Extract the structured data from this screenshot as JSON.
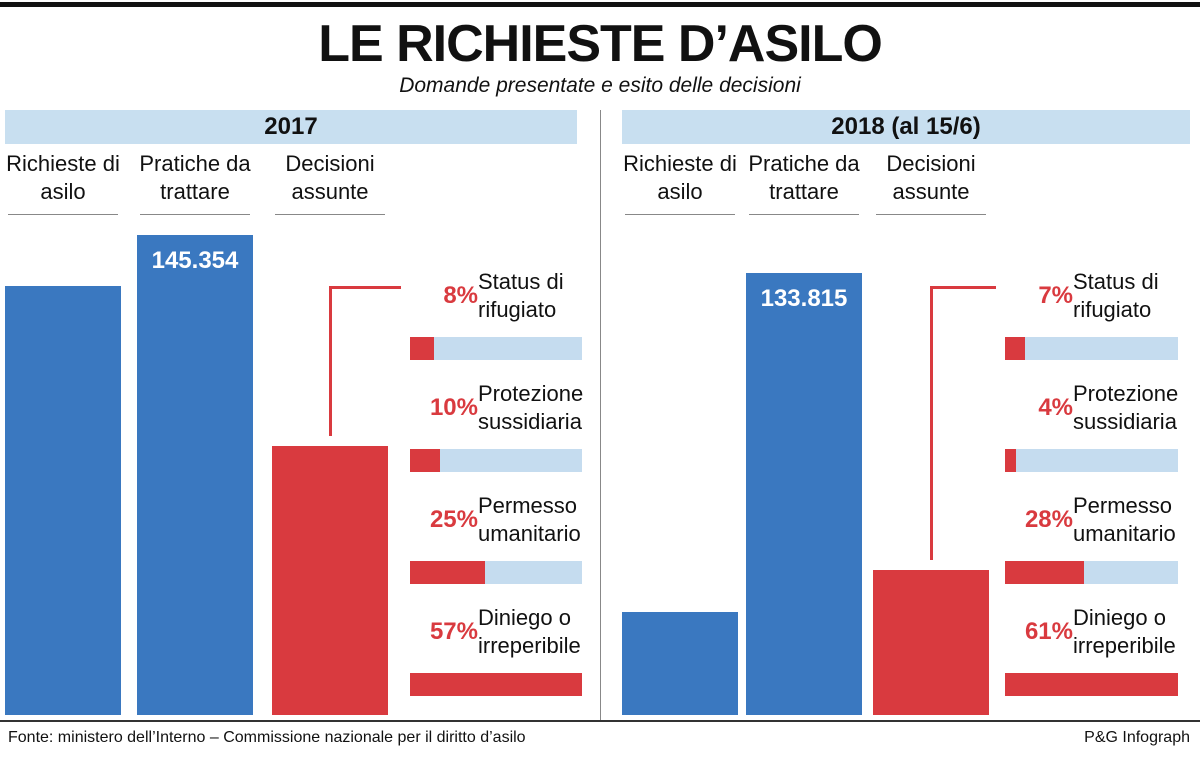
{
  "title": "LE RICHIESTE D’ASILO",
  "subtitle": "Domande presentate e esito delle decisioni",
  "chart_data": [
    {
      "type": "bar",
      "title": "2017",
      "categories": [
        "Richieste di asilo",
        "Pratiche da trattare",
        "Decisioni assunte"
      ],
      "values": [
        130000,
        145354,
        81500
      ],
      "value_labels": [
        null,
        "145.354",
        null
      ],
      "colors": [
        "#3a78c0",
        "#3a78c0",
        "#d93a3f"
      ],
      "ylim": [
        0,
        150000
      ],
      "breakdown": {
        "categories": [
          "Status di rifugiato",
          "Protezione sussidiaria",
          "Permesso umanitario",
          "Diniego o irreperibile"
        ],
        "values": [
          8,
          10,
          25,
          57
        ],
        "value_labels": [
          "8%",
          "10%",
          "25%",
          "57%"
        ]
      }
    },
    {
      "type": "bar",
      "title": "2018 (al 15/6)",
      "categories": [
        "Richieste di asilo",
        "Pratiche da trattare",
        "Decisioni assunte"
      ],
      "values": [
        31200,
        133815,
        43900
      ],
      "value_labels": [
        null,
        "133.815",
        null
      ],
      "colors": [
        "#3a78c0",
        "#3a78c0",
        "#d93a3f"
      ],
      "ylim": [
        0,
        150000
      ],
      "breakdown": {
        "categories": [
          "Status di rifugiato",
          "Protezione sussidiaria",
          "Permesso umanitario",
          "Diniego o irreperibile"
        ],
        "values": [
          7,
          4,
          28,
          61
        ],
        "value_labels": [
          "7%",
          "4%",
          "28%",
          "61%"
        ]
      }
    }
  ],
  "source": "Fonte: ministero dell’Interno – Commissione nazionale per il diritto d’asilo",
  "credit": "P&G Infograph"
}
